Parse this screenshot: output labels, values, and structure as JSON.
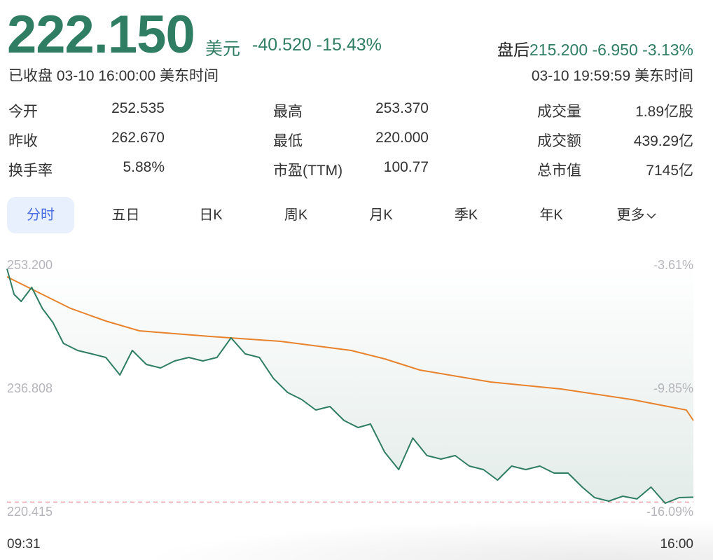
{
  "quote": {
    "price": "222.150",
    "currency": "美元",
    "change": "-40.520",
    "change_pct": "-15.43%",
    "after_hours_label": "盘后",
    "after_hours_price": "215.200",
    "after_hours_change": "-6.950",
    "after_hours_pct": "-3.13%",
    "status": "已收盘 03-10 16:00:00 美东时间",
    "after_hours_time": "03-10 19:59:59 美东时间"
  },
  "stats": [
    [
      {
        "label": "今开",
        "value": "252.535",
        "color": "green"
      },
      {
        "label": "最高",
        "value": "253.370",
        "color": "green"
      },
      {
        "label": "成交量",
        "value": "1.89亿股",
        "color": "plain"
      }
    ],
    [
      {
        "label": "昨收",
        "value": "262.670",
        "color": "plain"
      },
      {
        "label": "最低",
        "value": "220.000",
        "color": "green"
      },
      {
        "label": "成交额",
        "value": "439.29亿",
        "color": "plain"
      }
    ],
    [
      {
        "label": "换手率",
        "value": "5.88%",
        "color": "plain"
      },
      {
        "label": "市盈(TTM)",
        "value": "100.77",
        "color": "plain"
      },
      {
        "label": "总市值",
        "value": "7145亿",
        "color": "plain"
      }
    ]
  ],
  "tabs": [
    {
      "label": "分时",
      "active": true
    },
    {
      "label": "五日"
    },
    {
      "label": "日K"
    },
    {
      "label": "周K"
    },
    {
      "label": "月K"
    },
    {
      "label": "季K"
    },
    {
      "label": "年K"
    },
    {
      "label": "更多",
      "icon": "chevron-down-icon"
    }
  ],
  "colors": {
    "price_line": "#2f7d62",
    "avg_line": "#e8822c",
    "ref_line": "#f0a0a8",
    "fill": "#e3ece9",
    "label": "#b5b5bb"
  },
  "chart_data": {
    "type": "line",
    "ylim": [
      220.415,
      253.2
    ],
    "y_ticks_left": [
      "253.200",
      "236.808",
      "220.415"
    ],
    "y_ticks_right": [
      "-3.61%",
      "-9.85%",
      "-16.09%"
    ],
    "x_ticks": [
      "09:31",
      "16:00"
    ],
    "prev_close": 262.67,
    "reference_line": 221.5,
    "series": [
      {
        "key": "price",
        "x": [
          "09:31",
          "09:35",
          "09:39",
          "09:45",
          "09:51",
          "09:57",
          "10:03",
          "10:11",
          "10:19",
          "10:27",
          "10:35",
          "10:42",
          "10:50",
          "10:58",
          "11:06",
          "11:14",
          "11:22",
          "11:30",
          "11:38",
          "11:46",
          "11:54",
          "12:02",
          "12:10",
          "12:18",
          "12:26",
          "12:34",
          "12:42",
          "12:50",
          "12:57",
          "13:05",
          "13:13",
          "13:21",
          "13:29",
          "13:37",
          "13:45",
          "13:53",
          "14:01",
          "14:09",
          "14:17",
          "14:25",
          "14:33",
          "14:41",
          "14:49",
          "14:57",
          "15:04",
          "15:12",
          "15:20",
          "15:28",
          "15:36",
          "15:44",
          "15:52",
          "16:00"
        ],
        "values": [
          252.5,
          249.1,
          248.17,
          250.03,
          247.24,
          245.38,
          242.58,
          241.65,
          241.19,
          240.72,
          238.39,
          241.65,
          239.79,
          239.32,
          240.25,
          240.72,
          240.25,
          240.72,
          243.33,
          241.19,
          240.72,
          237.93,
          236.06,
          235.13,
          233.73,
          234.2,
          232.34,
          231.41,
          231.87,
          228.15,
          225.82,
          230.01,
          227.68,
          227.21,
          227.68,
          226.28,
          225.82,
          224.42,
          226.28,
          225.82,
          226.28,
          225.35,
          225.35,
          223.49,
          222.09,
          221.63,
          222.28,
          221.91,
          223.49,
          221.35,
          222.09,
          222.15
        ]
      },
      {
        "key": "average",
        "x": [
          "09:31",
          "09:47",
          "10:07",
          "10:27",
          "10:46",
          "11:26",
          "12:06",
          "12:46",
          "13:05",
          "13:25",
          "14:05",
          "14:45",
          "15:25",
          "15:56",
          "16:00"
        ],
        "values": [
          251.43,
          249.57,
          247.24,
          245.56,
          244.26,
          243.51,
          242.86,
          241.65,
          240.53,
          239.04,
          237.46,
          236.53,
          235.13,
          233.73,
          232.34
        ]
      }
    ]
  }
}
